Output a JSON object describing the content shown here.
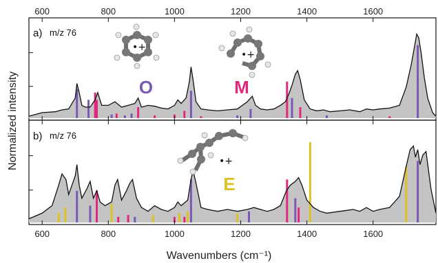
{
  "colors": {
    "O": "#7a59b5",
    "M": "#e0287f",
    "E": "#dcc226",
    "fill": "#c4c4c4",
    "line": "#111111"
  },
  "axes": {
    "xlabel": "Wavenumbers (cm⁻¹)",
    "ylabel": "Normalized intensity",
    "xticks": [
      "600",
      "800",
      "1000",
      "1200",
      "1400",
      "1600"
    ]
  },
  "panel_a": {
    "label": "a)",
    "mz": "m/z 76"
  },
  "panel_b": {
    "label": "b)",
    "mz": "m/z 76"
  },
  "isomers": {
    "O": "O",
    "M": "M",
    "E": "E"
  },
  "charge": "•+",
  "chart_data": [
    {
      "type": "area",
      "panel": "a",
      "xlabel": "Wavenumbers (cm⁻¹)",
      "ylabel": "Normalized intensity",
      "xlim": [
        560,
        1790
      ],
      "ylim": [
        0,
        1.0
      ],
      "spectrum": {
        "x": [
          560,
          600,
          640,
          660,
          680,
          700,
          705,
          712,
          720,
          730,
          745,
          760,
          768,
          780,
          800,
          820,
          840,
          860,
          880,
          890,
          900,
          920,
          940,
          960,
          980,
          1000,
          1010,
          1020,
          1035,
          1045,
          1050,
          1056,
          1065,
          1080,
          1100,
          1130,
          1160,
          1190,
          1220,
          1235,
          1245,
          1260,
          1280,
          1300,
          1320,
          1335,
          1345,
          1355,
          1365,
          1372,
          1380,
          1392,
          1410,
          1430,
          1450,
          1470,
          1500,
          1530,
          1560,
          1580,
          1600,
          1620,
          1650,
          1680,
          1700,
          1715,
          1725,
          1732,
          1738,
          1745,
          1755,
          1765,
          1780,
          1790
        ],
        "y": [
          0.02,
          0.06,
          0.07,
          0.09,
          0.1,
          0.22,
          0.38,
          0.28,
          0.14,
          0.12,
          0.12,
          0.2,
          0.28,
          0.14,
          0.14,
          0.18,
          0.12,
          0.14,
          0.16,
          0.22,
          0.12,
          0.14,
          0.13,
          0.11,
          0.1,
          0.14,
          0.2,
          0.16,
          0.22,
          0.4,
          0.56,
          0.42,
          0.18,
          0.1,
          0.09,
          0.08,
          0.09,
          0.1,
          0.18,
          0.24,
          0.14,
          0.1,
          0.09,
          0.1,
          0.14,
          0.18,
          0.26,
          0.36,
          0.48,
          0.52,
          0.42,
          0.2,
          0.1,
          0.08,
          0.09,
          0.07,
          0.08,
          0.09,
          0.07,
          0.1,
          0.09,
          0.1,
          0.11,
          0.14,
          0.34,
          0.58,
          0.78,
          0.92,
          0.88,
          0.72,
          0.44,
          0.22,
          0.06,
          0.02
        ]
      },
      "sticks": {
        "O": [
          [
            705,
            0.32
          ],
          [
            740,
            0.2
          ],
          [
            810,
            0.04
          ],
          [
            850,
            0.03
          ],
          [
            870,
            0.05
          ],
          [
            1050,
            0.3
          ],
          [
            1190,
            0.03
          ],
          [
            1230,
            0.1
          ],
          [
            1355,
            0.22
          ],
          [
            1460,
            0.03
          ],
          [
            1735,
            0.8
          ]
        ],
        "M": [
          [
            760,
            0.28
          ],
          [
            765,
            0.2
          ],
          [
            825,
            0.05
          ],
          [
            890,
            0.12
          ],
          [
            940,
            0.03
          ],
          [
            1000,
            0.04
          ],
          [
            1030,
            0.08
          ],
          [
            1080,
            0.02
          ],
          [
            1340,
            0.4
          ],
          [
            1380,
            0.12
          ],
          [
            1650,
            0.02
          ]
        ]
      }
    },
    {
      "type": "area",
      "panel": "b",
      "xlabel": "Wavenumbers (cm⁻¹)",
      "ylabel": "Normalized intensity",
      "xlim": [
        560,
        1790
      ],
      "ylim": [
        0,
        1.0
      ],
      "spectrum": {
        "x": [
          560,
          600,
          630,
          650,
          660,
          672,
          680,
          700,
          705,
          712,
          720,
          735,
          745,
          755,
          765,
          775,
          790,
          810,
          820,
          828,
          840,
          855,
          865,
          873,
          885,
          900,
          920,
          940,
          960,
          980,
          1000,
          1010,
          1020,
          1040,
          1050,
          1056,
          1065,
          1080,
          1100,
          1130,
          1160,
          1190,
          1220,
          1240,
          1260,
          1280,
          1300,
          1320,
          1338,
          1350,
          1365,
          1375,
          1385,
          1400,
          1420,
          1440,
          1460,
          1500,
          1540,
          1560,
          1580,
          1600,
          1620,
          1650,
          1680,
          1700,
          1712,
          1722,
          1728,
          1735,
          1742,
          1750,
          1760,
          1775,
          1790
        ],
        "y": [
          0.04,
          0.1,
          0.18,
          0.4,
          0.52,
          0.46,
          0.3,
          0.5,
          0.62,
          0.4,
          0.26,
          0.36,
          0.44,
          0.26,
          0.34,
          0.22,
          0.18,
          0.22,
          0.4,
          0.46,
          0.24,
          0.34,
          0.42,
          0.46,
          0.26,
          0.16,
          0.12,
          0.18,
          0.14,
          0.12,
          0.16,
          0.22,
          0.18,
          0.24,
          0.46,
          0.56,
          0.42,
          0.16,
          0.14,
          0.12,
          0.14,
          0.12,
          0.14,
          0.16,
          0.14,
          0.12,
          0.14,
          0.18,
          0.34,
          0.4,
          0.44,
          0.48,
          0.4,
          0.24,
          0.16,
          0.12,
          0.1,
          0.12,
          0.14,
          0.12,
          0.16,
          0.12,
          0.14,
          0.16,
          0.28,
          0.6,
          0.78,
          0.82,
          0.7,
          0.78,
          0.62,
          0.72,
          0.76,
          0.36,
          0.1
        ]
      },
      "sticks": {
        "O": [
          [
            705,
            0.34
          ],
          [
            745,
            0.18
          ],
          [
            880,
            0.06
          ],
          [
            1050,
            0.46
          ],
          [
            1225,
            0.12
          ],
          [
            1365,
            0.26
          ],
          [
            1735,
            0.66
          ]
        ],
        "M": [
          [
            765,
            0.34
          ],
          [
            830,
            0.06
          ],
          [
            860,
            0.08
          ],
          [
            1000,
            0.06
          ],
          [
            1030,
            0.06
          ],
          [
            1340,
            0.46
          ],
          [
            1375,
            0.16
          ]
        ],
        "E": [
          [
            650,
            0.1
          ],
          [
            670,
            0.16
          ],
          [
            810,
            0.2
          ],
          [
            935,
            0.08
          ],
          [
            1015,
            0.1
          ],
          [
            1040,
            0.12
          ],
          [
            1190,
            0.1
          ],
          [
            1410,
            0.86
          ],
          [
            1700,
            0.6
          ]
        ]
      }
    }
  ]
}
